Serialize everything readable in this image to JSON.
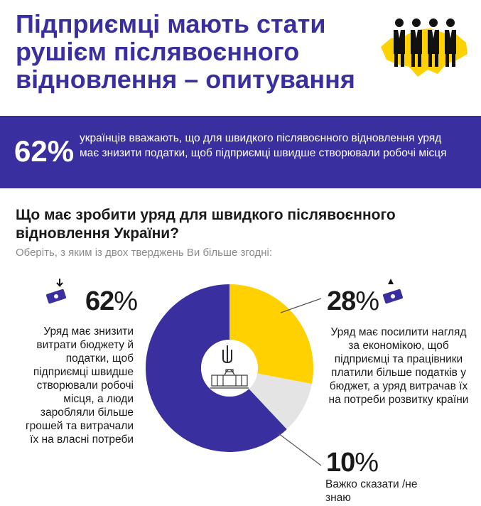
{
  "header": {
    "title": "Підприємці мають стати рушієм післявоєнного відновлення – опитування"
  },
  "banner": {
    "percent": "62%",
    "text": "українців вважають, що для швидкого післявоєнного відновлення уряд має знизити податки, щоб підприємці швидше створювали робочі місця"
  },
  "question": {
    "title": "Що має зробити уряд для швидкого післявоєнного відновлення України?",
    "subtitle": "Оберіть, з яким із двох тверджень Ви більше згодні:"
  },
  "chart_data": {
    "type": "pie",
    "title": "Що має зробити уряд для швидкого післявоєнного відновлення України?",
    "slices": [
      {
        "label": "Уряд має знизити витрати бюджету й податки, щоб підприємці швидше створювали робочі місця, а люди заробляли більше грошей та витрачали їх на власні потреби",
        "value": 62,
        "color": "#3a2f9e"
      },
      {
        "label": "Уряд має посилити нагляд за економікою, щоб підприємці та працівники платили більше податків у бюджет, а уряд витрачав їх на потреби розвитку країни",
        "value": 28,
        "color": "#ffd100"
      },
      {
        "label": "Важко сказати /не знаю",
        "value": 10,
        "color": "#e4e4e4"
      }
    ]
  },
  "labels": {
    "left_value": "62",
    "right_value": "28",
    "bottom_value": "10",
    "percent_sign": "%"
  },
  "colors": {
    "primary": "#3a2f9e",
    "accent": "#ffd100",
    "neutral": "#e4e4e4"
  },
  "icons": [
    "business-people-map-icon",
    "money-down-icon",
    "money-up-icon",
    "trident-icon",
    "parliament-building-icon"
  ]
}
